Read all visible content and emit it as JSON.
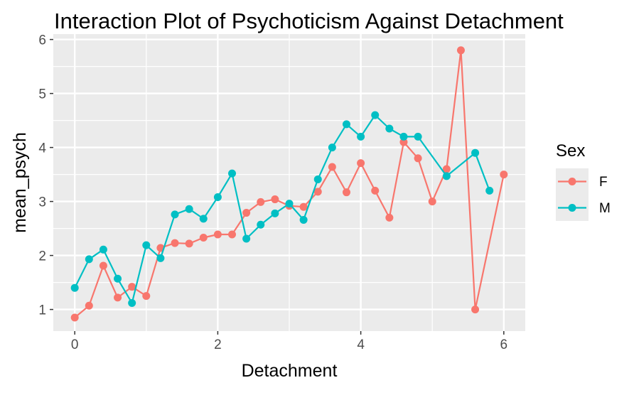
{
  "chart_data": {
    "type": "line",
    "title": "Interaction Plot of Psychoticism Against Detachment",
    "xlabel": "Detachment",
    "ylabel": "mean_psych",
    "xlim": [
      -0.3,
      6.3
    ],
    "ylim": [
      0.6,
      6.1
    ],
    "xticks": [
      "0",
      "2",
      "4",
      "6"
    ],
    "yticks": [
      "1",
      "2",
      "3",
      "4",
      "5",
      "6"
    ],
    "grid": true,
    "legend_position": "right",
    "legend_title": "Sex",
    "series": [
      {
        "name": "F",
        "color": "#F8766D",
        "x": [
          0,
          0.2,
          0.4,
          0.6,
          0.8,
          1.0,
          1.2,
          1.4,
          1.6,
          1.8,
          2.0,
          2.2,
          2.4,
          2.6,
          2.8,
          3.0,
          3.2,
          3.4,
          3.6,
          3.8,
          4.0,
          4.2,
          4.4,
          4.6,
          4.8,
          5.0,
          5.2,
          5.4,
          5.6,
          6.0
        ],
        "y": [
          0.85,
          1.07,
          1.81,
          1.22,
          1.42,
          1.25,
          2.14,
          2.23,
          2.22,
          2.33,
          2.39,
          2.39,
          2.79,
          2.99,
          3.04,
          2.92,
          2.9,
          3.18,
          3.64,
          3.17,
          3.71,
          3.2,
          2.7,
          4.1,
          3.8,
          3.0,
          3.6,
          5.8,
          1.0,
          3.5
        ]
      },
      {
        "name": "M",
        "color": "#00BFC4",
        "x": [
          0,
          0.2,
          0.4,
          0.6,
          0.8,
          1.0,
          1.2,
          1.4,
          1.6,
          1.8,
          2.0,
          2.2,
          2.4,
          2.6,
          2.8,
          3.0,
          3.2,
          3.4,
          3.6,
          3.8,
          4.0,
          4.2,
          4.4,
          4.6,
          4.8,
          5.2,
          5.6,
          5.8
        ],
        "y": [
          1.4,
          1.93,
          2.11,
          1.57,
          1.12,
          2.19,
          1.95,
          2.76,
          2.86,
          2.68,
          3.08,
          3.52,
          2.31,
          2.57,
          2.78,
          2.96,
          2.66,
          3.41,
          4.0,
          4.43,
          4.2,
          4.6,
          4.35,
          4.2,
          4.2,
          3.47,
          3.9,
          3.2
        ]
      }
    ]
  }
}
